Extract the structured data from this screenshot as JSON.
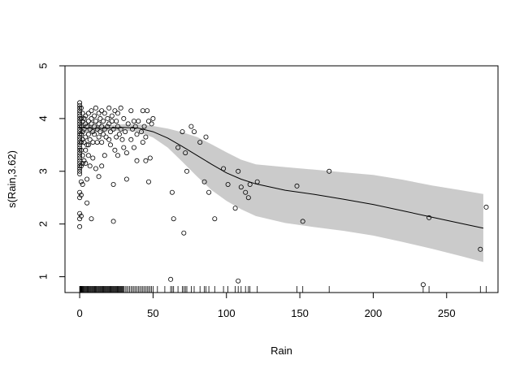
{
  "chart_data": {
    "type": "scatter",
    "title": "",
    "xlabel": "Rain",
    "ylabel": "s(Rain,3.62)",
    "xlim": [
      -10,
      285
    ],
    "ylim": [
      0.7,
      5.0
    ],
    "x_ticks": [
      0,
      50,
      100,
      150,
      200,
      250
    ],
    "x_tick_labels": [
      "0",
      "50",
      "100",
      "150",
      "200",
      "250"
    ],
    "y_ticks": [
      1,
      2,
      3,
      4,
      5
    ],
    "y_tick_labels": [
      "1",
      "2",
      "3",
      "4",
      "5"
    ],
    "colors": {
      "band": "#cbcbcb",
      "line": "#000000",
      "point": "#000000",
      "background": "#ffffff"
    },
    "smooth": {
      "x": [
        0,
        10,
        20,
        30,
        40,
        50,
        60,
        70,
        80,
        90,
        100,
        110,
        120,
        140,
        160,
        180,
        200,
        220,
        240,
        260,
        275
      ],
      "fit": [
        3.83,
        3.81,
        3.82,
        3.83,
        3.82,
        3.75,
        3.63,
        3.47,
        3.3,
        3.13,
        2.97,
        2.85,
        2.76,
        2.64,
        2.56,
        2.47,
        2.37,
        2.25,
        2.13,
        2.01,
        1.92
      ],
      "lower": [
        3.72,
        3.74,
        3.76,
        3.77,
        3.75,
        3.64,
        3.45,
        3.18,
        2.9,
        2.64,
        2.44,
        2.28,
        2.15,
        2.02,
        1.94,
        1.87,
        1.78,
        1.66,
        1.53,
        1.39,
        1.28
      ],
      "upper": [
        3.94,
        3.88,
        3.88,
        3.89,
        3.89,
        3.86,
        3.81,
        3.74,
        3.65,
        3.51,
        3.36,
        3.22,
        3.13,
        3.08,
        3.03,
        2.98,
        2.93,
        2.84,
        2.73,
        2.64,
        2.57
      ]
    },
    "points": [
      [
        0,
        4.3
      ],
      [
        0,
        4.25
      ],
      [
        0,
        4.2
      ],
      [
        0,
        4.15
      ],
      [
        0,
        4.1
      ],
      [
        0,
        4.05
      ],
      [
        0,
        4.0
      ],
      [
        0,
        3.95
      ],
      [
        0,
        3.9
      ],
      [
        0,
        3.85
      ],
      [
        0,
        3.8
      ],
      [
        0,
        3.75
      ],
      [
        0,
        3.7
      ],
      [
        0,
        3.65
      ],
      [
        0,
        3.6
      ],
      [
        0,
        3.55
      ],
      [
        0,
        3.5
      ],
      [
        0,
        3.45
      ],
      [
        0,
        3.4
      ],
      [
        0,
        3.35
      ],
      [
        0,
        3.3
      ],
      [
        0,
        3.25
      ],
      [
        0,
        3.2
      ],
      [
        0,
        3.15
      ],
      [
        0,
        3.1
      ],
      [
        0,
        3.05
      ],
      [
        0,
        3.0
      ],
      [
        0,
        2.95
      ],
      [
        0,
        2.6
      ],
      [
        0,
        2.5
      ],
      [
        0,
        2.2
      ],
      [
        0,
        2.1
      ],
      [
        0,
        1.95
      ],
      [
        1,
        4.2
      ],
      [
        1,
        4.0
      ],
      [
        1,
        3.85
      ],
      [
        1,
        3.7
      ],
      [
        1,
        3.55
      ],
      [
        1,
        3.4
      ],
      [
        1,
        3.1
      ],
      [
        1,
        2.8
      ],
      [
        1,
        2.55
      ],
      [
        1,
        2.15
      ],
      [
        2,
        4.1
      ],
      [
        2,
        3.95
      ],
      [
        2,
        3.75
      ],
      [
        2,
        3.6
      ],
      [
        2,
        3.3
      ],
      [
        2,
        3.15
      ],
      [
        2,
        2.75
      ],
      [
        3,
        4.0
      ],
      [
        3,
        3.8
      ],
      [
        3,
        3.55
      ],
      [
        3,
        3.2
      ],
      [
        4,
        4.05
      ],
      [
        4,
        3.9
      ],
      [
        4,
        3.65
      ],
      [
        4,
        3.4
      ],
      [
        4,
        3.15
      ],
      [
        5,
        3.85
      ],
      [
        5,
        3.5
      ],
      [
        5,
        2.85
      ],
      [
        5,
        2.4
      ],
      [
        6,
        4.1
      ],
      [
        6,
        3.95
      ],
      [
        6,
        3.7
      ],
      [
        6,
        3.5
      ],
      [
        6,
        3.3
      ],
      [
        7,
        3.8
      ],
      [
        7,
        3.6
      ],
      [
        7,
        3.1
      ],
      [
        8,
        4.15
      ],
      [
        8,
        4.0
      ],
      [
        8,
        3.9
      ],
      [
        8,
        2.1
      ],
      [
        9,
        3.75
      ],
      [
        9,
        3.55
      ],
      [
        9,
        3.25
      ],
      [
        10,
        4.05
      ],
      [
        10,
        3.85
      ],
      [
        10,
        3.7
      ],
      [
        11,
        4.2
      ],
      [
        11,
        3.95
      ],
      [
        11,
        3.05
      ],
      [
        12,
        3.8
      ],
      [
        12,
        3.55
      ],
      [
        13,
        4.1
      ],
      [
        13,
        3.9
      ],
      [
        13,
        3.65
      ],
      [
        13,
        2.9
      ],
      [
        14,
        4.0
      ],
      [
        14,
        3.75
      ],
      [
        15,
        4.15
      ],
      [
        15,
        3.85
      ],
      [
        15,
        3.55
      ],
      [
        15,
        3.1
      ],
      [
        16,
        3.95
      ],
      [
        16,
        3.7
      ],
      [
        17,
        4.1
      ],
      [
        17,
        3.8
      ],
      [
        17,
        3.3
      ],
      [
        18,
        3.65
      ],
      [
        19,
        4.0
      ],
      [
        19,
        3.85
      ],
      [
        20,
        4.2
      ],
      [
        20,
        3.9
      ],
      [
        20,
        3.6
      ],
      [
        21,
        3.75
      ],
      [
        21,
        3.5
      ],
      [
        22,
        4.05
      ],
      [
        22,
        3.95
      ],
      [
        23,
        3.8
      ],
      [
        23,
        2.75
      ],
      [
        23,
        2.05
      ],
      [
        24,
        4.15
      ],
      [
        24,
        3.4
      ],
      [
        25,
        3.95
      ],
      [
        25,
        3.65
      ],
      [
        26,
        4.1
      ],
      [
        26,
        3.85
      ],
      [
        26,
        3.3
      ],
      [
        27,
        3.7
      ],
      [
        28,
        4.2
      ],
      [
        28,
        3.8
      ],
      [
        29,
        3.6
      ],
      [
        30,
        4.0
      ],
      [
        30,
        3.45
      ],
      [
        31,
        3.75
      ],
      [
        32,
        3.35
      ],
      [
        32,
        2.85
      ],
      [
        33,
        3.9
      ],
      [
        35,
        4.15
      ],
      [
        35,
        3.6
      ],
      [
        36,
        3.8
      ],
      [
        37,
        3.95
      ],
      [
        37,
        3.45
      ],
      [
        38,
        3.85
      ],
      [
        39,
        3.7
      ],
      [
        39,
        3.2
      ],
      [
        40,
        3.95
      ],
      [
        42,
        3.75
      ],
      [
        43,
        4.15
      ],
      [
        43,
        3.55
      ],
      [
        44,
        3.85
      ],
      [
        45,
        3.65
      ],
      [
        45,
        3.2
      ],
      [
        46,
        4.15
      ],
      [
        47,
        3.95
      ],
      [
        47,
        2.8
      ],
      [
        48,
        3.25
      ],
      [
        49,
        3.9
      ],
      [
        50,
        4.0
      ],
      [
        62,
        0.95
      ],
      [
        63,
        2.6
      ],
      [
        64,
        2.1
      ],
      [
        67,
        3.45
      ],
      [
        70,
        3.75
      ],
      [
        71,
        1.83
      ],
      [
        72,
        3.35
      ],
      [
        73,
        3.0
      ],
      [
        76,
        3.85
      ],
      [
        78,
        3.75
      ],
      [
        82,
        3.55
      ],
      [
        85,
        2.8
      ],
      [
        86,
        3.65
      ],
      [
        88,
        2.6
      ],
      [
        92,
        2.1
      ],
      [
        98,
        3.05
      ],
      [
        101,
        2.75
      ],
      [
        106,
        2.3
      ],
      [
        108,
        3.0
      ],
      [
        108,
        0.92
      ],
      [
        110,
        2.7
      ],
      [
        113,
        2.6
      ],
      [
        115,
        2.5
      ],
      [
        116,
        2.75
      ],
      [
        121,
        2.8
      ],
      [
        148,
        2.72
      ],
      [
        152,
        2.05
      ],
      [
        170,
        3.0
      ],
      [
        234,
        0.85
      ],
      [
        238,
        2.12
      ],
      [
        273,
        1.52
      ],
      [
        277,
        2.32
      ]
    ],
    "rug": [
      0,
      0.3,
      0.6,
      0.9,
      1.2,
      1.5,
      1.8,
      2.2,
      2.6,
      3,
      3.5,
      4,
      4.5,
      5,
      5.5,
      6,
      6.5,
      7,
      7.5,
      8,
      8.5,
      9,
      9.5,
      10,
      10.5,
      11,
      11.5,
      12,
      12.5,
      13,
      13.5,
      14,
      14.5,
      15,
      15.5,
      16,
      16.5,
      17,
      17.5,
      18,
      18.5,
      19,
      19.5,
      20,
      20.5,
      21,
      21.5,
      22,
      22.5,
      23,
      23.5,
      24,
      24.5,
      25,
      25.5,
      26,
      26.5,
      27,
      27.5,
      28,
      28.5,
      29,
      29.5,
      30,
      31,
      32,
      33,
      34,
      35,
      36,
      37,
      38,
      39,
      40,
      41,
      42,
      43,
      44,
      45,
      46,
      47,
      48,
      49,
      50,
      53,
      58,
      62,
      63,
      64,
      67,
      70,
      71,
      72,
      73,
      76,
      78,
      82,
      85,
      86,
      88,
      92,
      98,
      101,
      106,
      108,
      110,
      113,
      115,
      116,
      121,
      148,
      152,
      170,
      234,
      238,
      273,
      277
    ]
  }
}
